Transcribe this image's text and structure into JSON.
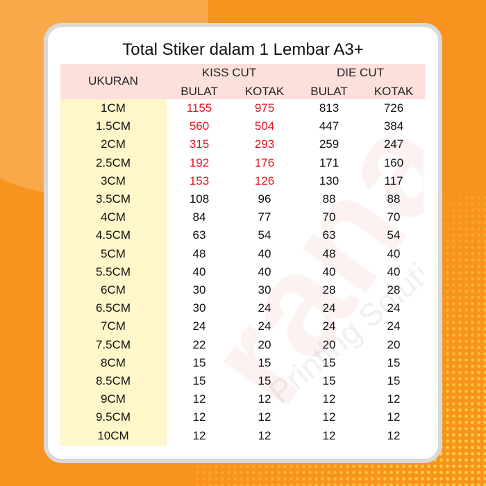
{
  "title": "Total Stiker dalam 1 Lembar A3+",
  "watermark": "rana Printing Solution",
  "colors": {
    "background": "#f7931e",
    "header": "#fde0dc",
    "size_column": "#fff6c9",
    "highlight": "#e0161e"
  },
  "headers": {
    "size": "UKURAN",
    "kiss_cut": "KISS CUT",
    "die_cut": "DIE CUT",
    "kiss_bulat": "BULAT",
    "kiss_kotak": "KOTAK",
    "die_bulat": "BULAT",
    "die_kotak": "KOTAK"
  },
  "rows": [
    {
      "size": "1CM",
      "kiss_bulat": "1155",
      "kiss_kotak": "975",
      "die_bulat": "813",
      "die_kotak": "726",
      "highlight": true
    },
    {
      "size": "1.5CM",
      "kiss_bulat": "560",
      "kiss_kotak": "504",
      "die_bulat": "447",
      "die_kotak": "384",
      "highlight": true
    },
    {
      "size": "2CM",
      "kiss_bulat": "315",
      "kiss_kotak": "293",
      "die_bulat": "259",
      "die_kotak": "247",
      "highlight": true
    },
    {
      "size": "2.5CM",
      "kiss_bulat": "192",
      "kiss_kotak": "176",
      "die_bulat": "171",
      "die_kotak": "160",
      "highlight": true
    },
    {
      "size": "3CM",
      "kiss_bulat": "153",
      "kiss_kotak": "126",
      "die_bulat": "130",
      "die_kotak": "117",
      "highlight": true
    },
    {
      "size": "3.5CM",
      "kiss_bulat": "108",
      "kiss_kotak": "96",
      "die_bulat": "88",
      "die_kotak": "88",
      "highlight": false
    },
    {
      "size": "4CM",
      "kiss_bulat": "84",
      "kiss_kotak": "77",
      "die_bulat": "70",
      "die_kotak": "70",
      "highlight": false
    },
    {
      "size": "4.5CM",
      "kiss_bulat": "63",
      "kiss_kotak": "54",
      "die_bulat": "63",
      "die_kotak": "54",
      "highlight": false
    },
    {
      "size": "5CM",
      "kiss_bulat": "48",
      "kiss_kotak": "40",
      "die_bulat": "48",
      "die_kotak": "40",
      "highlight": false
    },
    {
      "size": "5.5CM",
      "kiss_bulat": "40",
      "kiss_kotak": "40",
      "die_bulat": "40",
      "die_kotak": "40",
      "highlight": false
    },
    {
      "size": "6CM",
      "kiss_bulat": "30",
      "kiss_kotak": "30",
      "die_bulat": "28",
      "die_kotak": "28",
      "highlight": false
    },
    {
      "size": "6.5CM",
      "kiss_bulat": "30",
      "kiss_kotak": "24",
      "die_bulat": "24",
      "die_kotak": "24",
      "highlight": false
    },
    {
      "size": "7CM",
      "kiss_bulat": "24",
      "kiss_kotak": "24",
      "die_bulat": "24",
      "die_kotak": "24",
      "highlight": false
    },
    {
      "size": "7.5CM",
      "kiss_bulat": "22",
      "kiss_kotak": "20",
      "die_bulat": "20",
      "die_kotak": "20",
      "highlight": false
    },
    {
      "size": "8CM",
      "kiss_bulat": "15",
      "kiss_kotak": "15",
      "die_bulat": "15",
      "die_kotak": "15",
      "highlight": false
    },
    {
      "size": "8.5CM",
      "kiss_bulat": "15",
      "kiss_kotak": "15",
      "die_bulat": "15",
      "die_kotak": "15",
      "highlight": false
    },
    {
      "size": "9CM",
      "kiss_bulat": "12",
      "kiss_kotak": "12",
      "die_bulat": "12",
      "die_kotak": "12",
      "highlight": false
    },
    {
      "size": "9.5CM",
      "kiss_bulat": "12",
      "kiss_kotak": "12",
      "die_bulat": "12",
      "die_kotak": "12",
      "highlight": false
    },
    {
      "size": "10CM",
      "kiss_bulat": "12",
      "kiss_kotak": "12",
      "die_bulat": "12",
      "die_kotak": "12",
      "highlight": false
    }
  ]
}
